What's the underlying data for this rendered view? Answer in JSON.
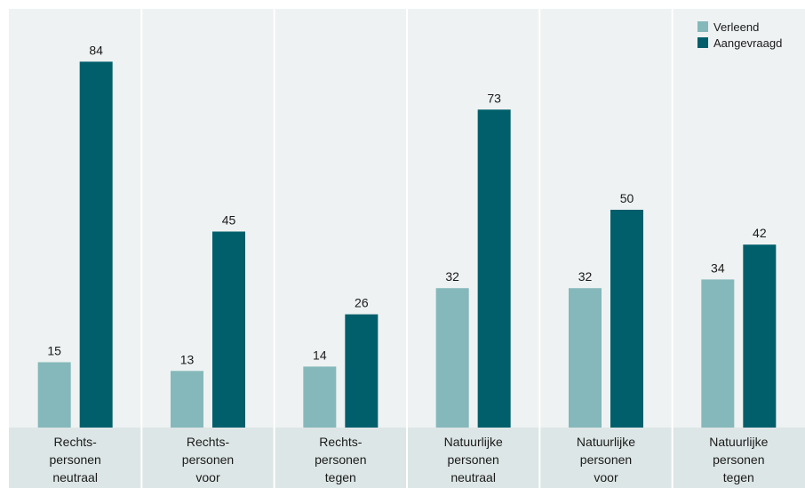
{
  "colors": {
    "background": "#eef2f2",
    "axis_band": "#dde6e6",
    "divider": "#ffffff",
    "verleend": "#85b8ba",
    "aangevraagd": "#005f6b"
  },
  "chart_data": {
    "type": "bar",
    "title": "",
    "xlabel": "",
    "ylabel": "",
    "ylim": [
      0,
      90
    ],
    "grid": false,
    "legend_position": "top-right",
    "categories": [
      [
        "Rechts-",
        "personen",
        "neutraal"
      ],
      [
        "Rechts-",
        "personen",
        "voor"
      ],
      [
        "Rechts-",
        "personen",
        "tegen"
      ],
      [
        "Natuurlijke",
        "personen",
        "neutraal"
      ],
      [
        "Natuurlijke",
        "personen",
        "voor"
      ],
      [
        "Natuurlijke",
        "personen",
        "tegen"
      ]
    ],
    "series": [
      {
        "name": "Verleend",
        "color": "#85b8ba",
        "values": [
          15,
          13,
          14,
          32,
          32,
          34
        ]
      },
      {
        "name": "Aangevraagd",
        "color": "#005f6b",
        "values": [
          84,
          45,
          26,
          73,
          50,
          42
        ]
      }
    ]
  }
}
